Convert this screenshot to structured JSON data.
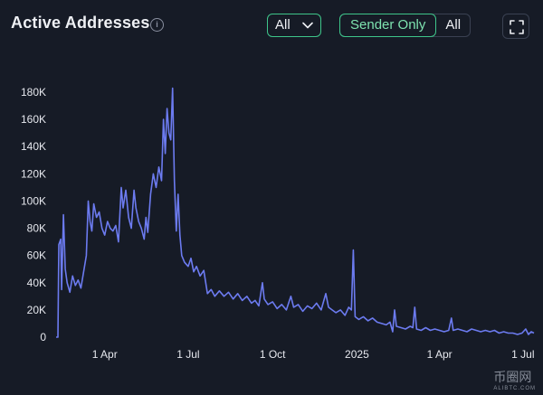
{
  "header": {
    "title": "Active Addresses",
    "info_icon": "info-icon",
    "filter_value": "All",
    "toggle_sender_only": "Sender Only",
    "toggle_all": "All",
    "expand_icon": "expand-icon",
    "accent": "#3ec58a"
  },
  "watermark": {
    "text": "币圈网",
    "sub": "ALIBTC.COM"
  },
  "chart_data": {
    "type": "line",
    "color": "#6c7bf0",
    "y_ticks": [
      "0",
      "20K",
      "40K",
      "60K",
      "80K",
      "100K",
      "120K",
      "140K",
      "160K",
      "180K"
    ],
    "y_tick_values": [
      0,
      20000,
      40000,
      60000,
      80000,
      100000,
      120000,
      140000,
      160000,
      180000
    ],
    "ylim": [
      0,
      180000
    ],
    "x_ticks": [
      "1 Apr",
      "1 Jul",
      "1 Oct",
      "2025",
      "1 Apr",
      "1 Jul"
    ],
    "x_tick_dates": [
      "2024-04-01",
      "2024-07-01",
      "2024-10-01",
      "2025-01-01",
      "2025-04-01",
      "2025-07-01"
    ],
    "xlim": [
      "2024-02-08",
      "2025-07-13"
    ],
    "grid": false,
    "series": [
      {
        "points": [
          [
            "2024-02-08",
            0
          ],
          [
            "2024-02-10",
            0
          ],
          [
            "2024-02-11",
            68000
          ],
          [
            "2024-02-13",
            72000
          ],
          [
            "2024-02-14",
            35000
          ],
          [
            "2024-02-16",
            90000
          ],
          [
            "2024-02-18",
            50000
          ],
          [
            "2024-02-20",
            40000
          ],
          [
            "2024-02-23",
            33000
          ],
          [
            "2024-02-26",
            45000
          ],
          [
            "2024-02-29",
            38000
          ],
          [
            "2024-03-03",
            42000
          ],
          [
            "2024-03-06",
            36000
          ],
          [
            "2024-03-09",
            48000
          ],
          [
            "2024-03-12",
            60000
          ],
          [
            "2024-03-14",
            100000
          ],
          [
            "2024-03-16",
            85000
          ],
          [
            "2024-03-18",
            78000
          ],
          [
            "2024-03-20",
            98000
          ],
          [
            "2024-03-23",
            88000
          ],
          [
            "2024-03-26",
            92000
          ],
          [
            "2024-03-29",
            80000
          ],
          [
            "2024-04-01",
            75000
          ],
          [
            "2024-04-04",
            85000
          ],
          [
            "2024-04-07",
            80000
          ],
          [
            "2024-04-10",
            78000
          ],
          [
            "2024-04-13",
            82000
          ],
          [
            "2024-04-16",
            70000
          ],
          [
            "2024-04-19",
            110000
          ],
          [
            "2024-04-21",
            95000
          ],
          [
            "2024-04-24",
            108000
          ],
          [
            "2024-04-27",
            88000
          ],
          [
            "2024-04-30",
            80000
          ],
          [
            "2024-05-03",
            108000
          ],
          [
            "2024-05-05",
            95000
          ],
          [
            "2024-05-08",
            85000
          ],
          [
            "2024-05-11",
            80000
          ],
          [
            "2024-05-14",
            72000
          ],
          [
            "2024-05-16",
            88000
          ],
          [
            "2024-05-18",
            77000
          ],
          [
            "2024-05-21",
            105000
          ],
          [
            "2024-05-24",
            120000
          ],
          [
            "2024-05-27",
            110000
          ],
          [
            "2024-05-30",
            125000
          ],
          [
            "2024-06-02",
            115000
          ],
          [
            "2024-06-04",
            160000
          ],
          [
            "2024-06-06",
            135000
          ],
          [
            "2024-06-08",
            168000
          ],
          [
            "2024-06-10",
            150000
          ],
          [
            "2024-06-12",
            145000
          ],
          [
            "2024-06-14",
            183000
          ],
          [
            "2024-06-16",
            115000
          ],
          [
            "2024-06-18",
            78000
          ],
          [
            "2024-06-20",
            105000
          ],
          [
            "2024-06-22",
            75000
          ],
          [
            "2024-06-24",
            60000
          ],
          [
            "2024-06-27",
            55000
          ],
          [
            "2024-07-01",
            52000
          ],
          [
            "2024-07-04",
            58000
          ],
          [
            "2024-07-07",
            48000
          ],
          [
            "2024-07-10",
            52000
          ],
          [
            "2024-07-14",
            45000
          ],
          [
            "2024-07-18",
            49000
          ],
          [
            "2024-07-22",
            32000
          ],
          [
            "2024-07-26",
            35000
          ],
          [
            "2024-07-30",
            30000
          ],
          [
            "2024-08-04",
            34000
          ],
          [
            "2024-08-09",
            30000
          ],
          [
            "2024-08-14",
            33000
          ],
          [
            "2024-08-19",
            28000
          ],
          [
            "2024-08-24",
            32000
          ],
          [
            "2024-08-29",
            27000
          ],
          [
            "2024-09-03",
            30000
          ],
          [
            "2024-09-08",
            25000
          ],
          [
            "2024-09-12",
            27000
          ],
          [
            "2024-09-16",
            23000
          ],
          [
            "2024-09-20",
            40000
          ],
          [
            "2024-09-22",
            28000
          ],
          [
            "2024-09-26",
            24000
          ],
          [
            "2024-10-01",
            26000
          ],
          [
            "2024-10-06",
            21000
          ],
          [
            "2024-10-11",
            24000
          ],
          [
            "2024-10-16",
            20000
          ],
          [
            "2024-10-21",
            30000
          ],
          [
            "2024-10-24",
            22000
          ],
          [
            "2024-10-29",
            24000
          ],
          [
            "2024-11-03",
            19000
          ],
          [
            "2024-11-08",
            23000
          ],
          [
            "2024-11-13",
            21000
          ],
          [
            "2024-11-18",
            25000
          ],
          [
            "2024-11-23",
            20000
          ],
          [
            "2024-11-28",
            32000
          ],
          [
            "2024-12-01",
            22000
          ],
          [
            "2024-12-05",
            20000
          ],
          [
            "2024-12-09",
            18000
          ],
          [
            "2024-12-14",
            20000
          ],
          [
            "2024-12-19",
            16000
          ],
          [
            "2024-12-23",
            22000
          ],
          [
            "2024-12-26",
            20000
          ],
          [
            "2024-12-28",
            64000
          ],
          [
            "2024-12-30",
            15000
          ],
          [
            "2025-01-03",
            13000
          ],
          [
            "2025-01-08",
            15000
          ],
          [
            "2025-01-13",
            12000
          ],
          [
            "2025-01-18",
            14000
          ],
          [
            "2025-01-23",
            11000
          ],
          [
            "2025-01-28",
            10000
          ],
          [
            "2025-02-02",
            9000
          ],
          [
            "2025-02-06",
            11000
          ],
          [
            "2025-02-09",
            4000
          ],
          [
            "2025-02-11",
            20000
          ],
          [
            "2025-02-13",
            8000
          ],
          [
            "2025-02-18",
            7000
          ],
          [
            "2025-02-23",
            6000
          ],
          [
            "2025-02-28",
            8000
          ],
          [
            "2025-03-03",
            7000
          ],
          [
            "2025-03-05",
            22000
          ],
          [
            "2025-03-07",
            6000
          ],
          [
            "2025-03-12",
            5000
          ],
          [
            "2025-03-17",
            7000
          ],
          [
            "2025-03-22",
            5000
          ],
          [
            "2025-03-27",
            6000
          ],
          [
            "2025-04-01",
            5000
          ],
          [
            "2025-04-06",
            4000
          ],
          [
            "2025-04-11",
            5000
          ],
          [
            "2025-04-14",
            14000
          ],
          [
            "2025-04-16",
            5000
          ],
          [
            "2025-04-21",
            6000
          ],
          [
            "2025-04-26",
            5000
          ],
          [
            "2025-05-01",
            4000
          ],
          [
            "2025-05-06",
            6000
          ],
          [
            "2025-05-11",
            5000
          ],
          [
            "2025-05-16",
            4000
          ],
          [
            "2025-05-21",
            5000
          ],
          [
            "2025-05-26",
            4000
          ],
          [
            "2025-05-31",
            5000
          ],
          [
            "2025-06-05",
            3000
          ],
          [
            "2025-06-10",
            4000
          ],
          [
            "2025-06-15",
            3000
          ],
          [
            "2025-06-20",
            3000
          ],
          [
            "2025-06-25",
            2000
          ],
          [
            "2025-06-30",
            3000
          ],
          [
            "2025-07-04",
            6000
          ],
          [
            "2025-07-07",
            2000
          ],
          [
            "2025-07-10",
            4000
          ],
          [
            "2025-07-13",
            3000
          ]
        ]
      }
    ]
  }
}
